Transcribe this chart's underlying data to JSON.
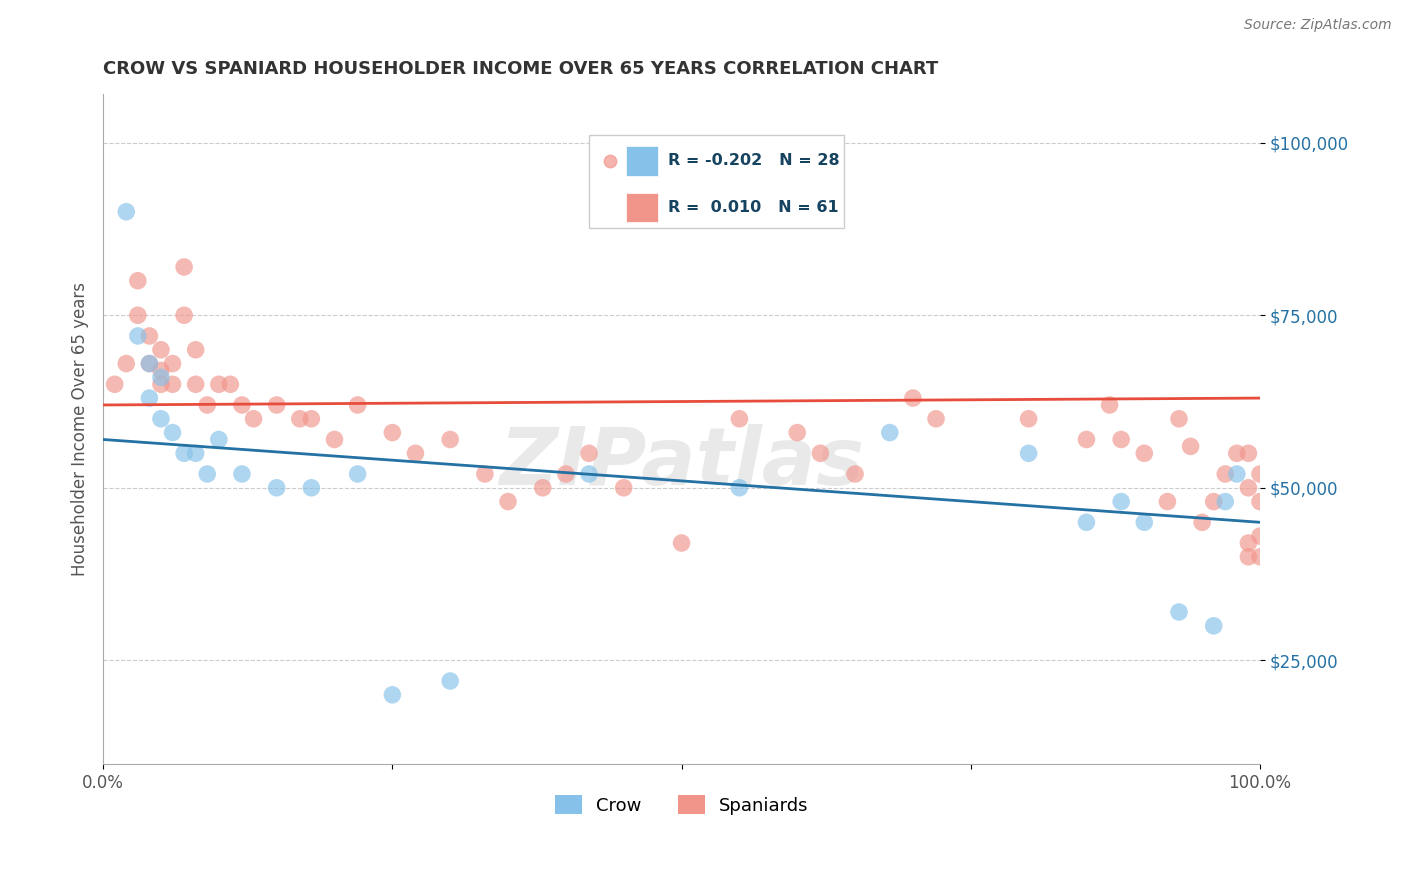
{
  "title": "CROW VS SPANIARD HOUSEHOLDER INCOME OVER 65 YEARS CORRELATION CHART",
  "source": "Source: ZipAtlas.com",
  "ylabel": "Householder Income Over 65 years",
  "xlim": [
    0,
    100
  ],
  "ylim": [
    10000,
    107000
  ],
  "yticks": [
    25000,
    50000,
    75000,
    100000
  ],
  "ytick_labels": [
    "$25,000",
    "$50,000",
    "$75,000",
    "$100,000"
  ],
  "crow_R": -0.202,
  "crow_N": 28,
  "spaniard_R": 0.01,
  "spaniard_N": 61,
  "crow_color": "#85c1e9",
  "spaniard_color": "#f1948a",
  "crow_line_color": "#2471a3",
  "spaniard_line_color": "#e74c3c",
  "legend_R_color": "#154360",
  "watermark": "ZIPatlas",
  "crow_x": [
    2,
    3,
    4,
    4,
    5,
    5,
    6,
    7,
    8,
    9,
    10,
    12,
    15,
    18,
    22,
    25,
    30,
    42,
    55,
    68,
    80,
    85,
    88,
    90,
    93,
    96,
    97,
    98
  ],
  "crow_y": [
    90000,
    72000,
    68000,
    63000,
    66000,
    60000,
    58000,
    55000,
    55000,
    52000,
    57000,
    52000,
    50000,
    50000,
    52000,
    20000,
    22000,
    52000,
    50000,
    58000,
    55000,
    45000,
    48000,
    45000,
    32000,
    30000,
    48000,
    52000
  ],
  "spaniard_x": [
    1,
    2,
    3,
    3,
    4,
    4,
    5,
    5,
    5,
    6,
    6,
    7,
    7,
    8,
    8,
    9,
    10,
    11,
    12,
    13,
    15,
    17,
    18,
    20,
    22,
    25,
    27,
    30,
    33,
    35,
    38,
    40,
    42,
    45,
    50,
    55,
    60,
    62,
    65,
    70,
    72,
    80,
    85,
    87,
    88,
    90,
    92,
    93,
    94,
    95,
    96,
    97,
    98,
    99,
    99,
    99,
    99,
    100,
    100,
    100,
    100
  ],
  "spaniard_y": [
    65000,
    68000,
    80000,
    75000,
    72000,
    68000,
    70000,
    67000,
    65000,
    68000,
    65000,
    82000,
    75000,
    70000,
    65000,
    62000,
    65000,
    65000,
    62000,
    60000,
    62000,
    60000,
    60000,
    57000,
    62000,
    58000,
    55000,
    57000,
    52000,
    48000,
    50000,
    52000,
    55000,
    50000,
    42000,
    60000,
    58000,
    55000,
    52000,
    63000,
    60000,
    60000,
    57000,
    62000,
    57000,
    55000,
    48000,
    60000,
    56000,
    45000,
    48000,
    52000,
    55000,
    40000,
    42000,
    50000,
    55000,
    48000,
    52000,
    43000,
    40000
  ]
}
